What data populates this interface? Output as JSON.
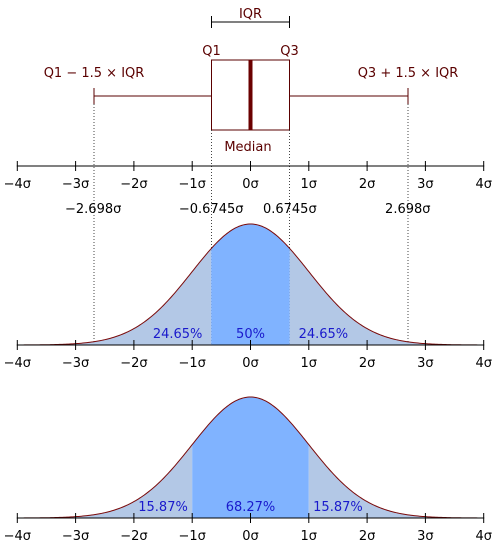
{
  "colors": {
    "boxplot_line": "#5a0000",
    "median_line": "#6b0000",
    "curve": "#7a0a0a",
    "center_fill": "#80b3ff",
    "tail_fill": "#b3c8e6",
    "percent_text": "#1a1acc",
    "guide": "#444444"
  },
  "boxplot": {
    "iqr_label": "IQR",
    "q1_label": "Q1",
    "q3_label": "Q3",
    "lower_whisker_label": "Q1 − 1.5 × IQR",
    "upper_whisker_label": "Q3 + 1.5 × IQR",
    "median_label": "Median",
    "q1_value": -0.6745,
    "q3_value": 0.6745,
    "lower_whisker_value": -2.698,
    "upper_whisker_value": 2.698
  },
  "sigma_ticks": [
    {
      "value": -4,
      "label": "−4σ"
    },
    {
      "value": -3,
      "label": "−3σ"
    },
    {
      "value": -2,
      "label": "−2σ"
    },
    {
      "value": -1,
      "label": "−1σ"
    },
    {
      "value": 0,
      "label": "0σ"
    },
    {
      "value": 1,
      "label": "1σ"
    },
    {
      "value": 2,
      "label": "2σ"
    },
    {
      "value": 3,
      "label": "3σ"
    },
    {
      "value": 4,
      "label": "4σ"
    }
  ],
  "quartile_values": [
    {
      "value": -2.698,
      "label": "−2.698σ"
    },
    {
      "value": -0.6745,
      "label": "−0.6745σ"
    },
    {
      "value": 0.6745,
      "label": "0.6745σ"
    },
    {
      "value": 2.698,
      "label": "2.698σ"
    }
  ],
  "panel_quartiles": {
    "regions": [
      {
        "from": -4,
        "to": -0.6745,
        "shade": "tail"
      },
      {
        "from": -0.6745,
        "to": 0.6745,
        "shade": "center"
      },
      {
        "from": 0.6745,
        "to": 4,
        "shade": "tail"
      }
    ],
    "percent_labels": [
      {
        "at": -1.25,
        "text": "24.65%"
      },
      {
        "at": 0,
        "text": "50%"
      },
      {
        "at": 1.25,
        "text": "24.65%"
      }
    ]
  },
  "panel_sigma": {
    "regions": [
      {
        "from": -4,
        "to": -1,
        "shade": "tail"
      },
      {
        "from": -1,
        "to": 1,
        "shade": "center"
      },
      {
        "from": 1,
        "to": 4,
        "shade": "tail"
      }
    ],
    "percent_labels": [
      {
        "at": -1.5,
        "text": "15.87%"
      },
      {
        "at": 0,
        "text": "68.27%"
      },
      {
        "at": 1.5,
        "text": "15.87%"
      }
    ]
  }
}
